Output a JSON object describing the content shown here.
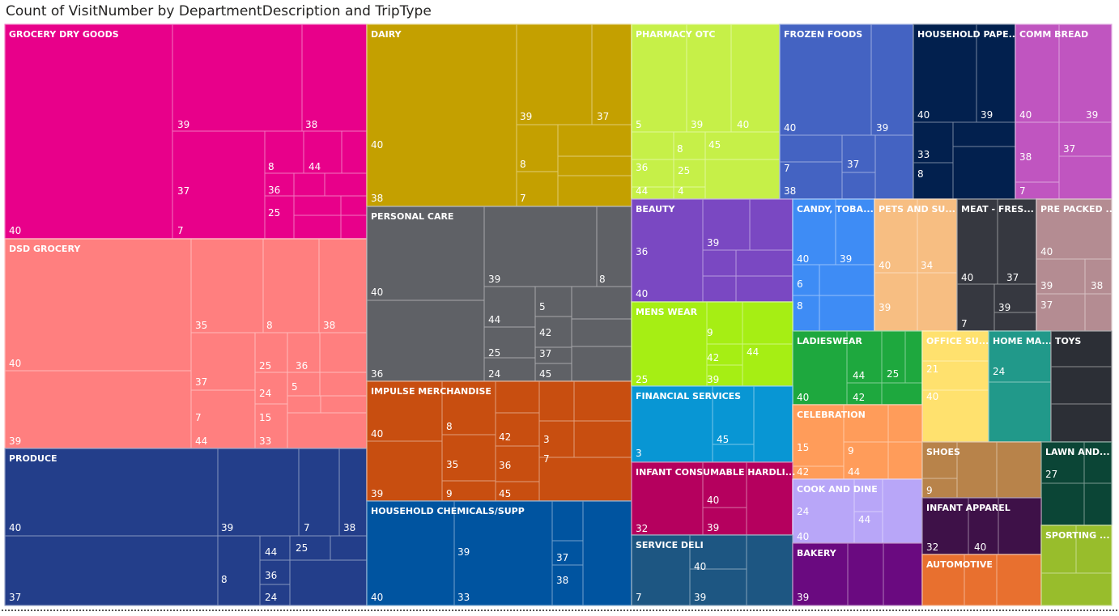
{
  "chart_data": {
    "type": "treemap",
    "title": "Count of VisitNumber by DepartmentDescription and TripType",
    "hierarchy": [
      "DepartmentDescription",
      "TripType"
    ],
    "departments": [
      {
        "name": "GROCERY DRY GOODS",
        "color": "#E8008A",
        "triptypes": [
          40,
          39,
          38,
          37,
          7,
          8,
          44,
          36,
          25
        ]
      },
      {
        "name": "DSD GROCERY",
        "color": "#FF7F7F",
        "triptypes": [
          40,
          39,
          35,
          8,
          38,
          37,
          7,
          44,
          25,
          36,
          24,
          5,
          15,
          33
        ]
      },
      {
        "name": "PRODUCE",
        "color": "#233E8A",
        "triptypes": [
          40,
          37,
          39,
          7,
          38,
          8,
          44,
          36,
          25,
          24
        ]
      },
      {
        "name": "DAIRY",
        "color": "#C4A000",
        "triptypes": [
          40,
          38,
          39,
          37,
          8,
          7
        ]
      },
      {
        "name": "PERSONAL CARE",
        "color": "#5F6166",
        "triptypes": [
          40,
          36,
          39,
          8,
          44,
          5,
          42,
          25,
          37,
          24,
          45
        ]
      },
      {
        "name": "IMPULSE MERCHANDISE",
        "color": "#C84E10",
        "triptypes": [
          40,
          39,
          8,
          35,
          9,
          42,
          36,
          45,
          3,
          7
        ]
      },
      {
        "name": "HOUSEHOLD CHEMICALS/SUPP",
        "color": "#0054A0",
        "triptypes": [
          40,
          39,
          33,
          37,
          38
        ]
      },
      {
        "name": "PHARMACY OTC",
        "color": "#C6F048",
        "triptypes": [
          5,
          39,
          40,
          8,
          45,
          36,
          25,
          44,
          4
        ]
      },
      {
        "name": "FROZEN FOODS",
        "color": "#4463C2",
        "triptypes": [
          40,
          39,
          7,
          37,
          38
        ]
      },
      {
        "name": "HOUSEHOLD PAPE...",
        "color": "#02204E",
        "triptypes": [
          40,
          39,
          33,
          8
        ]
      },
      {
        "name": "COMM BREAD",
        "color": "#C055C0",
        "triptypes": [
          40,
          39,
          38,
          37,
          7
        ]
      },
      {
        "name": "BEAUTY",
        "color": "#7A48C2",
        "triptypes": [
          36,
          39,
          40
        ]
      },
      {
        "name": "CANDY, TOBA...",
        "color": "#3E8CF5",
        "triptypes": [
          40,
          39,
          6,
          8
        ]
      },
      {
        "name": "PETS AND SU...",
        "color": "#F7BE82",
        "triptypes": [
          40,
          34,
          39
        ]
      },
      {
        "name": "MEAT - FRES...",
        "color": "#363840",
        "triptypes": [
          40,
          37,
          7,
          39
        ]
      },
      {
        "name": "PRE PACKED ...",
        "color": "#B48C92",
        "triptypes": [
          40,
          39,
          38,
          37
        ]
      },
      {
        "name": "MENS WEAR",
        "color": "#A6EE14",
        "triptypes": [
          9,
          42,
          44,
          25,
          39
        ]
      },
      {
        "name": "LADIESWEAR",
        "color": "#1EA83E",
        "triptypes": [
          40,
          44,
          25,
          42
        ]
      },
      {
        "name": "OFFICE SU...",
        "color": "#FFE16E",
        "triptypes": [
          21,
          40
        ]
      },
      {
        "name": "HOME MA...",
        "color": "#21998A",
        "triptypes": [
          24
        ]
      },
      {
        "name": "TOYS",
        "color": "#2C2F36",
        "triptypes": []
      },
      {
        "name": "FINANCIAL SERVICES",
        "color": "#0896D4",
        "triptypes": [
          45,
          3
        ]
      },
      {
        "name": "CELEBRATION",
        "color": "#FF9C5A",
        "triptypes": [
          15,
          9,
          42,
          44
        ]
      },
      {
        "name": "INFANT CONSUMABLE HARDLI...",
        "color": "#B5005E",
        "triptypes": [
          40,
          32,
          39
        ]
      },
      {
        "name": "COOK AND DINE",
        "color": "#B8A6F8",
        "triptypes": [
          24,
          44,
          40
        ]
      },
      {
        "name": "SERVICE DELI",
        "color": "#1D5682",
        "triptypes": [
          40,
          7,
          39
        ]
      },
      {
        "name": "BAKERY",
        "color": "#6A0A80",
        "triptypes": [
          39
        ]
      },
      {
        "name": "SHOES",
        "color": "#B8834A",
        "triptypes": [
          9
        ]
      },
      {
        "name": "LAWN AND...",
        "color": "#0B4536",
        "triptypes": [
          27
        ]
      },
      {
        "name": "INFANT APPAREL",
        "color": "#3E1148",
        "triptypes": [
          32,
          40
        ]
      },
      {
        "name": "AUTOMOTIVE",
        "color": "#E8702F",
        "triptypes": []
      },
      {
        "name": "SPORTING ...",
        "color": "#98BD2C",
        "triptypes": []
      }
    ]
  }
}
